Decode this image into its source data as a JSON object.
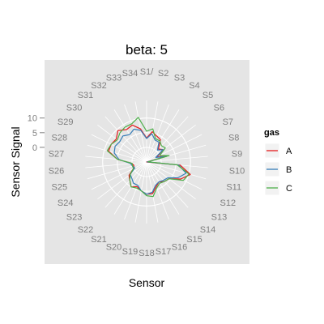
{
  "chart_data": {
    "type": "radar",
    "title": "beta: 5",
    "xlabel": "Sensor",
    "ylabel": "Sensor Signal",
    "categories": [
      "S1/",
      "S2",
      "S3",
      "S4",
      "S5",
      "S6",
      "S7",
      "S8",
      "S9",
      "S10",
      "S11",
      "S12",
      "S13",
      "S14",
      "S15",
      "S16",
      "S17",
      "S18",
      "S19",
      "S20",
      "S21",
      "S22",
      "S23",
      "S24",
      "S25",
      "S26",
      "S27",
      "S28",
      "S29",
      "S30",
      "S31",
      "S32",
      "S33",
      "S34"
    ],
    "yticks": [
      0,
      5,
      10
    ],
    "ylim": [
      -5,
      16
    ],
    "grid": true,
    "legend": {
      "title": "gas",
      "position": "right",
      "entries": [
        "A",
        "B",
        "C"
      ]
    },
    "series": [
      {
        "name": "A",
        "color": "#e41a1c",
        "values": [
          3.2,
          5.5,
          4.5,
          4.0,
          1.0,
          2.0,
          -1.0,
          2.0,
          -5.0,
          6.5,
          10.5,
          8.0,
          4.5,
          4.0,
          3.0,
          4.0,
          6.0,
          6.0,
          5.0,
          4.0,
          5.0,
          3.5,
          2.5,
          0.0,
          -0.5,
          0.0,
          5.0,
          8.5,
          8.5,
          8.0,
          9.5,
          8.0,
          8.5,
          6.5
        ]
      },
      {
        "name": "B",
        "color": "#377eb8",
        "values": [
          3.0,
          4.8,
          3.0,
          3.0,
          0.5,
          2.0,
          -1.5,
          2.0,
          -4.8,
          6.0,
          9.0,
          7.0,
          4.0,
          3.5,
          3.0,
          3.5,
          5.5,
          6.0,
          5.0,
          3.5,
          3.5,
          2.5,
          2.0,
          -0.5,
          0.0,
          0.5,
          4.5,
          6.5,
          7.0,
          6.5,
          7.0,
          6.0,
          7.0,
          6.0
        ]
      },
      {
        "name": "C",
        "color": "#4daf4a",
        "values": [
          5.5,
          6.5,
          3.5,
          3.5,
          2.5,
          3.0,
          0.0,
          3.0,
          -4.5,
          5.5,
          10.0,
          9.0,
          4.5,
          4.0,
          3.5,
          4.5,
          7.0,
          6.5,
          5.0,
          4.5,
          5.0,
          3.5,
          2.0,
          0.0,
          0.0,
          0.0,
          5.0,
          9.0,
          8.5,
          7.5,
          8.5,
          9.0,
          9.0,
          10.5
        ]
      }
    ]
  }
}
